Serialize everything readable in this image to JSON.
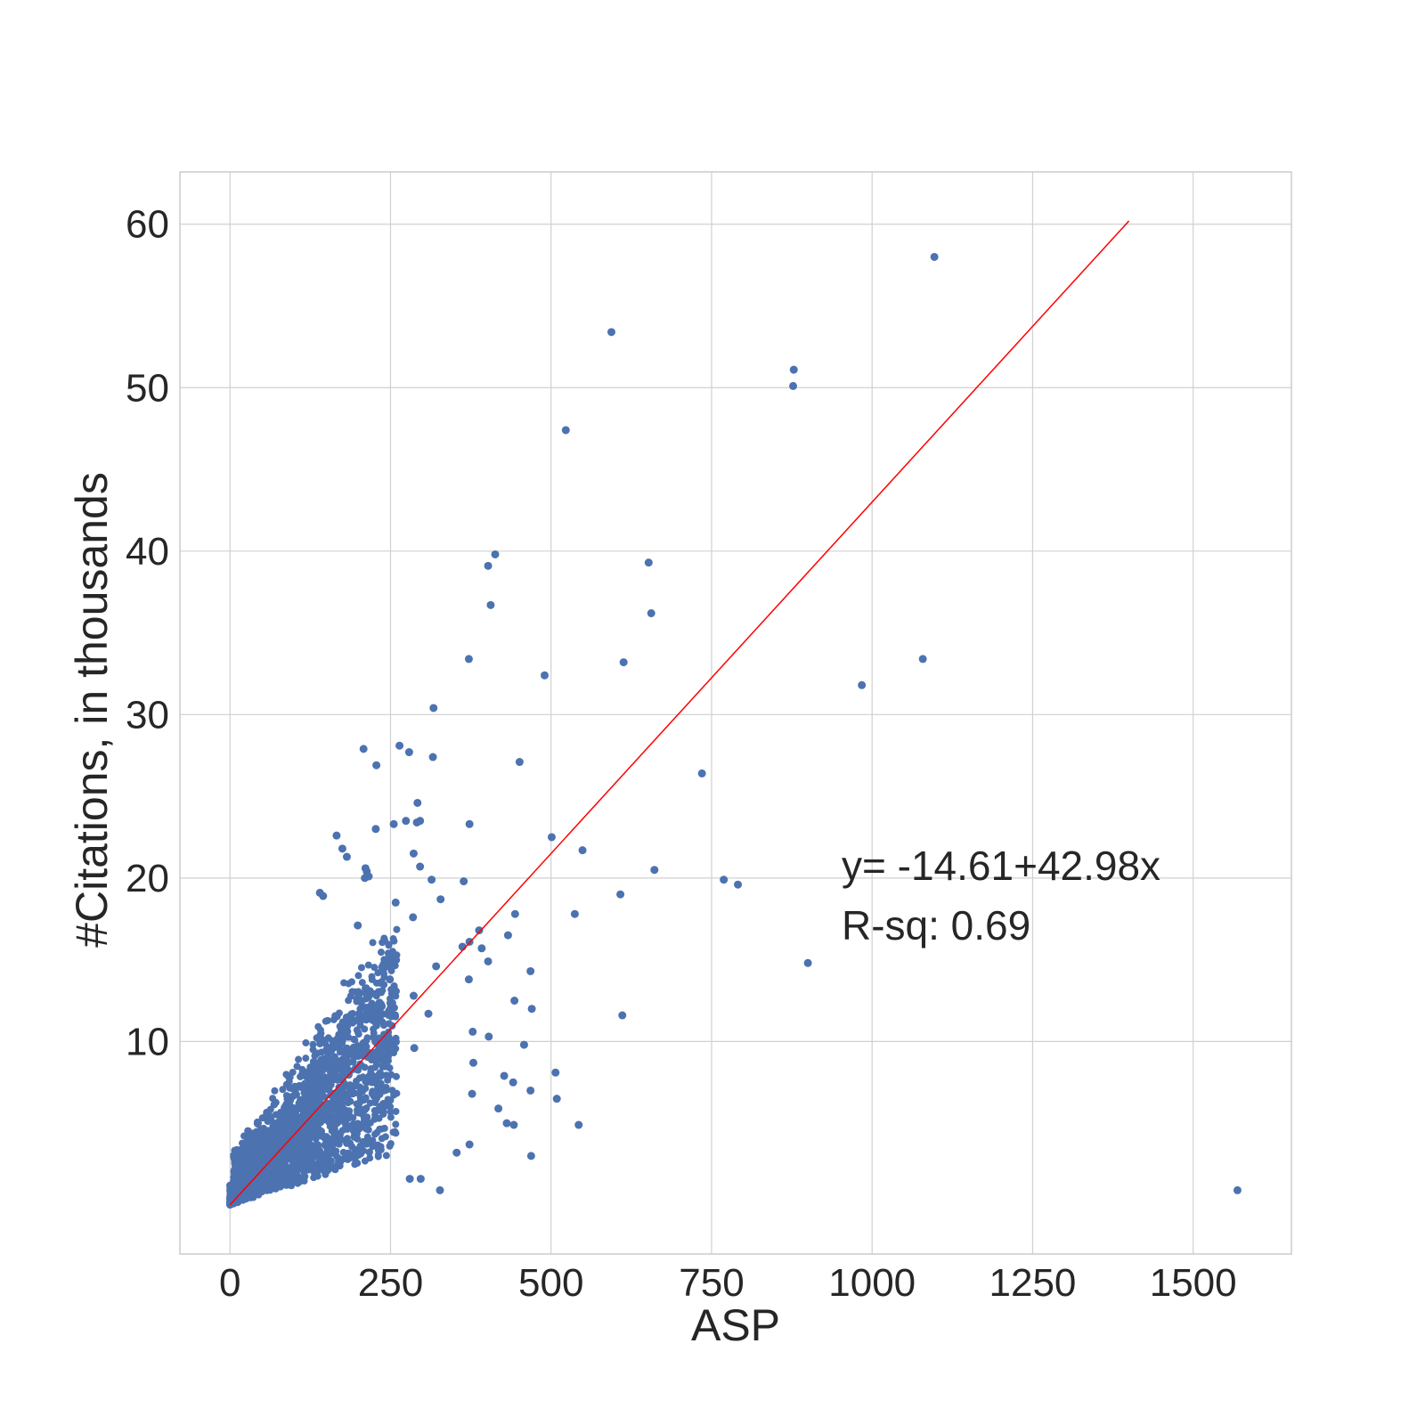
{
  "chart_data": {
    "type": "scatter",
    "title": "",
    "xlabel": "ASP",
    "ylabel": "#Citations, in thousands",
    "xlim": [
      -78,
      1653
    ],
    "ylim": [
      -3,
      63.2
    ],
    "x_ticks": [
      0,
      250,
      500,
      750,
      1000,
      1250,
      1500
    ],
    "y_ticks": [
      10,
      20,
      30,
      40,
      50,
      60
    ],
    "grid": true,
    "colors": {
      "points": "#4c72b0",
      "fit_line": "#ff0000",
      "grid": "#d0d0d0",
      "frame": "#cccccc"
    },
    "fit_line": {
      "x": [
        0,
        1400
      ],
      "y": [
        0,
        60.2
      ]
    },
    "annotations": [
      "y= -14.61+42.98x",
      "R-sq: 0.69"
    ],
    "series": [
      {
        "points": [
          [
            1097,
            58.0
          ],
          [
            594,
            53.4
          ],
          [
            878,
            51.1
          ],
          [
            877,
            50.1
          ],
          [
            523,
            47.4
          ],
          [
            413,
            39.8
          ],
          [
            402,
            39.1
          ],
          [
            652,
            39.3
          ],
          [
            406,
            36.7
          ],
          [
            656,
            36.2
          ],
          [
            372,
            33.4
          ],
          [
            613,
            33.2
          ],
          [
            1079,
            33.4
          ],
          [
            490,
            32.4
          ],
          [
            984,
            31.8
          ],
          [
            317,
            30.4
          ],
          [
            208,
            27.9
          ],
          [
            264,
            28.1
          ],
          [
            279,
            27.7
          ],
          [
            316,
            27.4
          ],
          [
            451,
            27.1
          ],
          [
            228,
            26.9
          ],
          [
            735,
            26.4
          ],
          [
            292,
            24.6
          ],
          [
            227,
            23.0
          ],
          [
            255,
            23.3
          ],
          [
            274,
            23.5
          ],
          [
            291,
            23.4
          ],
          [
            296,
            23.5
          ],
          [
            373,
            23.3
          ],
          [
            501,
            22.5
          ],
          [
            166,
            22.6
          ],
          [
            175,
            21.8
          ],
          [
            182,
            21.3
          ],
          [
            286,
            21.5
          ],
          [
            549,
            21.7
          ],
          [
            211,
            20.6
          ],
          [
            213,
            20.4
          ],
          [
            296,
            20.7
          ],
          [
            661,
            20.5
          ],
          [
            210,
            20.0
          ],
          [
            216,
            20.1
          ],
          [
            314,
            19.9
          ],
          [
            364,
            19.8
          ],
          [
            769,
            19.9
          ],
          [
            791,
            19.6
          ],
          [
            608,
            19.0
          ],
          [
            140,
            19.1
          ],
          [
            145,
            18.9
          ],
          [
            258,
            18.5
          ],
          [
            328,
            18.7
          ],
          [
            285,
            17.6
          ],
          [
            444,
            17.8
          ],
          [
            537,
            17.8
          ],
          [
            199,
            17.1
          ],
          [
            362,
            15.8
          ],
          [
            373,
            16.1
          ],
          [
            388,
            16.8
          ],
          [
            433,
            16.5
          ],
          [
            392,
            15.7
          ],
          [
            402,
            14.9
          ],
          [
            900,
            14.8
          ],
          [
            468,
            14.3
          ],
          [
            321,
            14.6
          ],
          [
            249,
            13.8
          ],
          [
            372,
            13.8
          ],
          [
            286,
            12.8
          ],
          [
            443,
            12.5
          ],
          [
            470,
            12.0
          ],
          [
            611,
            11.6
          ],
          [
            309,
            11.7
          ],
          [
            378,
            10.6
          ],
          [
            403,
            10.3
          ],
          [
            458,
            9.8
          ],
          [
            287,
            9.6
          ],
          [
            379,
            8.7
          ],
          [
            507,
            8.1
          ],
          [
            427,
            7.9
          ],
          [
            468,
            7.0
          ],
          [
            441,
            7.5
          ],
          [
            377,
            6.8
          ],
          [
            509,
            6.5
          ],
          [
            418,
            5.9
          ],
          [
            431,
            5.0
          ],
          [
            442,
            4.9
          ],
          [
            373,
            3.7
          ],
          [
            353,
            3.2
          ],
          [
            469,
            3.0
          ],
          [
            543,
            4.9
          ],
          [
            327,
            0.9
          ],
          [
            297,
            1.6
          ],
          [
            280,
            1.6
          ],
          [
            1569,
            0.9
          ]
        ]
      }
    ]
  }
}
